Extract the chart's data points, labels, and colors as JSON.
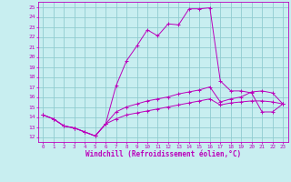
{
  "xlabel": "Windchill (Refroidissement éolien,°C)",
  "xlim": [
    -0.5,
    23.5
  ],
  "ylim": [
    11.5,
    25.5
  ],
  "xticks": [
    0,
    1,
    2,
    3,
    4,
    5,
    6,
    7,
    8,
    9,
    10,
    11,
    12,
    13,
    14,
    15,
    16,
    17,
    18,
    19,
    20,
    21,
    22,
    23
  ],
  "yticks": [
    12,
    13,
    14,
    15,
    16,
    17,
    18,
    19,
    20,
    21,
    22,
    23,
    24,
    25
  ],
  "bg_color": "#c8eef0",
  "line_color": "#bb00bb",
  "grid_color": "#90ccd0",
  "line1_y": [
    14.2,
    13.8,
    13.1,
    12.9,
    12.5,
    12.1,
    13.3,
    17.1,
    19.6,
    21.1,
    22.7,
    22.1,
    23.3,
    23.2,
    24.8,
    24.8,
    24.9,
    17.6,
    16.6,
    16.6,
    16.4,
    14.5,
    14.5,
    15.3
  ],
  "line2_y": [
    14.2,
    13.8,
    13.1,
    12.9,
    12.5,
    12.1,
    13.3,
    14.5,
    15.0,
    15.3,
    15.6,
    15.8,
    16.0,
    16.3,
    16.5,
    16.7,
    17.0,
    15.5,
    15.8,
    16.0,
    16.5,
    16.6,
    16.4,
    15.3
  ],
  "line3_y": [
    14.2,
    13.8,
    13.1,
    12.9,
    12.5,
    12.1,
    13.3,
    13.8,
    14.2,
    14.4,
    14.6,
    14.8,
    15.0,
    15.2,
    15.4,
    15.6,
    15.8,
    15.2,
    15.4,
    15.5,
    15.6,
    15.6,
    15.5,
    15.3
  ]
}
